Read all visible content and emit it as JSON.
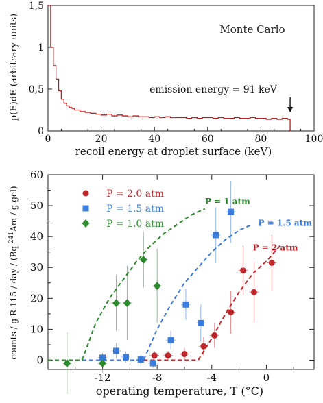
{
  "chart_data": [
    {
      "type": "line",
      "title": "",
      "annotation_text": "Monte Carlo",
      "emission_label": "emission energy = 91 keV",
      "xlabel": "recoil energy at droplet surface (keV)",
      "ylabel": "p(E)dE (arbitrary units)",
      "xlim": [
        0,
        100
      ],
      "ylim": [
        0,
        1.5
      ],
      "x_ticks": [
        0,
        20,
        40,
        60,
        80,
        100
      ],
      "x_tick_labels": [
        "0",
        "20",
        "40",
        "60",
        "80",
        "100"
      ],
      "y_ticks": [
        0,
        0.5,
        1,
        1.5
      ],
      "y_tick_labels": [
        "0",
        "0,5",
        "1",
        "1,5"
      ],
      "emission_arrow_x": 91,
      "color": "#b22222",
      "series": [
        {
          "x": [
            0,
            1,
            2,
            3,
            4,
            5,
            6,
            7,
            8,
            9,
            10,
            12,
            14,
            16,
            18,
            20,
            22,
            24,
            26,
            28,
            30,
            32,
            34,
            36,
            38,
            40,
            42,
            44,
            46,
            48,
            50,
            52,
            54,
            56,
            58,
            60,
            62,
            64,
            66,
            68,
            70,
            72,
            74,
            76,
            78,
            80,
            82,
            84,
            86,
            88,
            90,
            91
          ],
          "y": [
            1.5,
            1.0,
            0.78,
            0.62,
            0.48,
            0.38,
            0.33,
            0.3,
            0.28,
            0.27,
            0.25,
            0.23,
            0.22,
            0.21,
            0.2,
            0.19,
            0.2,
            0.18,
            0.19,
            0.18,
            0.17,
            0.18,
            0.17,
            0.17,
            0.16,
            0.17,
            0.16,
            0.17,
            0.16,
            0.16,
            0.16,
            0.15,
            0.16,
            0.15,
            0.16,
            0.16,
            0.15,
            0.16,
            0.15,
            0.15,
            0.16,
            0.15,
            0.15,
            0.16,
            0.15,
            0.15,
            0.14,
            0.15,
            0.14,
            0.15,
            0.14,
            0.14
          ]
        }
      ]
    },
    {
      "type": "scatter",
      "title": "",
      "xlabel": "operating temperature, T (°C)",
      "ylabel_html_parts": [
        "counts / g R-115 / day / (Bq ",
        "241",
        "Am / g gel)"
      ],
      "xlim": [
        -16,
        3.5
      ],
      "ylim": [
        -3,
        60
      ],
      "x_ticks": [
        -12,
        -8,
        -4,
        0
      ],
      "x_tick_labels": [
        "-12",
        "-8",
        "-4",
        "0"
      ],
      "y_ticks": [
        0,
        10,
        20,
        30,
        40,
        50,
        60
      ],
      "y_tick_labels": [
        "0",
        "10",
        "20",
        "30",
        "40",
        "50",
        "60"
      ],
      "legend_position": "top-left",
      "series": [
        {
          "name": "P = 2.0 atm",
          "fit_label": "P = 2 atm",
          "color": "#c0272d",
          "marker": "circle",
          "points": [
            {
              "x": -8.2,
              "y": 1.5,
              "err": 1.5
            },
            {
              "x": -7.2,
              "y": 1.5,
              "err": 1.5
            },
            {
              "x": -6.0,
              "y": 2.0,
              "err": 2.0
            },
            {
              "x": -4.6,
              "y": 4.5,
              "err": 3.0
            },
            {
              "x": -3.8,
              "y": 8.0,
              "err": 4.0
            },
            {
              "x": -2.6,
              "y": 15.5,
              "err": 7.0
            },
            {
              "x": -1.7,
              "y": 29.0,
              "err": 8.0
            },
            {
              "x": -0.9,
              "y": 22.0,
              "err": 10.0
            },
            {
              "x": 0.4,
              "y": 31.5,
              "err": 9.0
            }
          ],
          "fit": {
            "x": [
              -9.5,
              -5.0,
              -4.0,
              -3.0,
              -2.0,
              -1.0,
              0.0,
              1.0
            ],
            "y": [
              0,
              0,
              7,
              15,
              22,
              28,
              32,
              37
            ]
          }
        },
        {
          "name": "P = 1.5 atm",
          "fit_label": "P = 1.5 atm",
          "color": "#3b7ddd",
          "marker": "square",
          "points": [
            {
              "x": -12.0,
              "y": 0.8,
              "err": 1.5
            },
            {
              "x": -11.0,
              "y": 3.0,
              "err": 2.5
            },
            {
              "x": -10.3,
              "y": 1.0,
              "err": 1.8
            },
            {
              "x": -9.2,
              "y": 0.2,
              "err": 1.5
            },
            {
              "x": -8.3,
              "y": -1.0,
              "err": 1.5
            },
            {
              "x": -7.0,
              "y": 6.5,
              "err": 3.0
            },
            {
              "x": -5.9,
              "y": 18.0,
              "err": 5.0
            },
            {
              "x": -4.8,
              "y": 12.0,
              "err": 6.0
            },
            {
              "x": -3.7,
              "y": 40.5,
              "err": 9.0
            },
            {
              "x": -2.6,
              "y": 48.0,
              "err": 10.0
            }
          ],
          "fit": {
            "x": [
              -16,
              -9.0,
              -8.0,
              -7.0,
              -6.0,
              -5.0,
              -4.0,
              -3.0,
              -2.0,
              -1.0
            ],
            "y": [
              0,
              0,
              10,
              18,
              25,
              30,
              35,
              39,
              42,
              44
            ]
          }
        },
        {
          "name": "P = 1.0 atm",
          "fit_label": "P = 1 atm",
          "color": "#2b8a2b",
          "marker": "diamond",
          "points": [
            {
              "x": -14.6,
              "y": -1.0,
              "err": 10.0
            },
            {
              "x": -12.0,
              "y": -1.0,
              "err": 3.0
            },
            {
              "x": -11.0,
              "y": 18.5,
              "err": 9.0
            },
            {
              "x": -10.2,
              "y": 18.5,
              "err": 12.0
            },
            {
              "x": -9.0,
              "y": 32.5,
              "err": 9.0
            },
            {
              "x": -8.0,
              "y": 24.0,
              "err": 12.0
            }
          ],
          "fit": {
            "x": [
              -16,
              -13.5,
              -12.5,
              -11.5,
              -10.5,
              -9.5,
              -8.5,
              -7.5,
              -6.5,
              -5.5,
              -4.5
            ],
            "y": [
              0,
              0,
              12,
              20,
              26,
              32,
              37,
              41,
              44,
              47,
              49
            ]
          }
        }
      ]
    }
  ]
}
